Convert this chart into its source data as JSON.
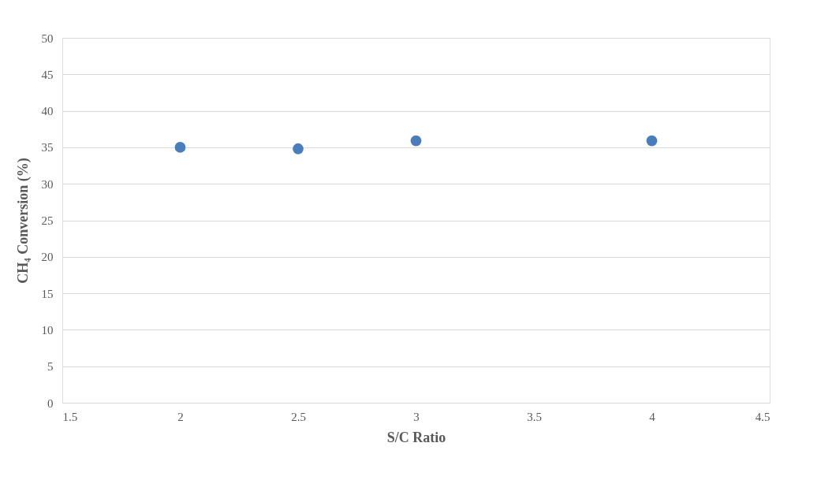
{
  "chart_data": {
    "type": "scatter",
    "xlabel": "S/C Ratio",
    "ylabel": "CH₄ Conversion (%)",
    "x": [
      2,
      2.5,
      3,
      4
    ],
    "series": [
      {
        "color": "#4a7ebb",
        "values": [
          35.0,
          34.8,
          35.9,
          35.9
        ]
      }
    ],
    "xlim": [
      1.5,
      4.5
    ],
    "xticks": [
      1.5,
      2,
      2.5,
      3,
      3.5,
      4,
      4.5
    ],
    "ylim": [
      0,
      50
    ],
    "yticks": [
      0,
      5,
      10,
      15,
      20,
      25,
      30,
      35,
      40,
      45,
      50
    ],
    "grid": "y",
    "marker": "circle",
    "legend": false
  }
}
